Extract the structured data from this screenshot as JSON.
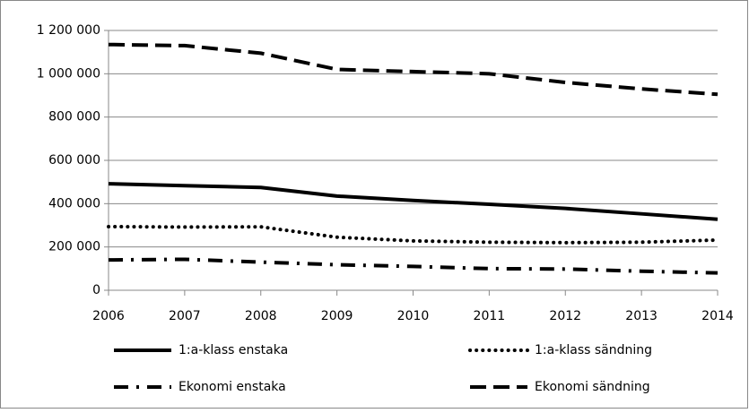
{
  "chart_data": {
    "type": "line",
    "x": [
      2006,
      2007,
      2008,
      2009,
      2010,
      2011,
      2012,
      2013,
      2014
    ],
    "xlim": [
      2006,
      2014
    ],
    "xticks": [
      2006,
      2007,
      2008,
      2009,
      2010,
      2011,
      2012,
      2013,
      2014
    ],
    "ylim": [
      0,
      1200000
    ],
    "yticks": [
      0,
      {
        "value": 200000,
        "label": "200 000"
      },
      {
        "value": 400000,
        "label": "400 000"
      },
      {
        "value": 600000,
        "label": "600 000"
      },
      {
        "value": 800000,
        "label": "800 000"
      },
      {
        "value": 1000000,
        "label": "1 000 000"
      },
      {
        "value": 1200000,
        "label": "1 200 000"
      }
    ],
    "grid": true,
    "legend": "bottom",
    "series": [
      {
        "name": "1:a-klass enstaka",
        "color": "#000000",
        "line_style": "solid",
        "values": [
          492000,
          483000,
          475000,
          435000,
          415000,
          397000,
          378000,
          353000,
          328000
        ]
      },
      {
        "name": "1:a-klass sändning",
        "color": "#000000",
        "line_style": "dotted",
        "values": [
          294000,
          292000,
          293000,
          245000,
          228000,
          222000,
          220000,
          222000,
          232000
        ]
      },
      {
        "name": "Ekonomi enstaka",
        "color": "#000000",
        "line_style": "dashdot",
        "values": [
          140000,
          143000,
          130000,
          118000,
          110000,
          100000,
          98000,
          88000,
          80000
        ]
      },
      {
        "name": "Ekonomi sändning",
        "color": "#000000",
        "line_style": "dashed",
        "values": [
          1135000,
          1130000,
          1095000,
          1020000,
          1010000,
          1000000,
          960000,
          930000,
          905000
        ]
      }
    ]
  }
}
